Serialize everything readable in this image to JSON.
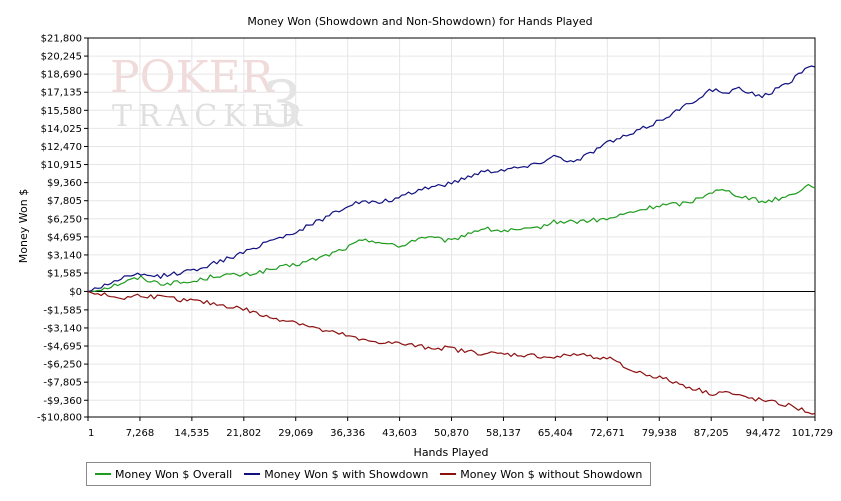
{
  "chart_data": {
    "type": "line",
    "title": "Money Won (Showdown and Non-Showdown) for Hands Played",
    "xlabel": "Hands Played",
    "ylabel": "Money Won $",
    "xlim": [
      1,
      101729
    ],
    "ylim": [
      -10800,
      21800
    ],
    "x_ticks": [
      1,
      7268,
      14535,
      21802,
      29069,
      36336,
      43603,
      50870,
      58137,
      65404,
      72671,
      79938,
      87205,
      94472,
      101729
    ],
    "x_tick_labels": [
      "1",
      "7,268",
      "14,535",
      "21,802",
      "29,069",
      "36,336",
      "43,603",
      "50,870",
      "58,137",
      "65,404",
      "72,671",
      "79,938",
      "87,205",
      "94,472",
      "101,729"
    ],
    "y_ticks": [
      21800,
      20245,
      18690,
      17135,
      15580,
      14025,
      12470,
      10915,
      9360,
      7805,
      6250,
      4695,
      3140,
      1585,
      0,
      -1585,
      -3140,
      -4695,
      -6250,
      -7805,
      -9360,
      -10800
    ],
    "y_tick_labels": [
      "$21,800",
      "$20,245",
      "$18,690",
      "$17,135",
      "$15,580",
      "$14,025",
      "$12,470",
      "$10,915",
      "$9,360",
      "$7,805",
      "$6,250",
      "$4,695",
      "$3,140",
      "$1,585",
      "$0",
      "-$1,585",
      "-$3,140",
      "-$4,695",
      "-$6,250",
      "-$7,805",
      "-$9,360",
      "-$10,800"
    ],
    "grid": true,
    "legend_position": "bottom-left",
    "series": [
      {
        "name": "Money Won $ Overall",
        "color": "#1e9c1e",
        "x": [
          1,
          3000,
          5000,
          7268,
          10000,
          14535,
          18000,
          21802,
          25000,
          29069,
          33000,
          36336,
          38000,
          40000,
          43603,
          45000,
          47000,
          50870,
          52000,
          55000,
          58137,
          62000,
          65404,
          68000,
          72671,
          76000,
          79938,
          84000,
          87205,
          89000,
          91000,
          94472,
          98000,
          101000,
          101729
        ],
        "y": [
          0,
          400,
          800,
          1200,
          700,
          800,
          1400,
          1400,
          1800,
          2300,
          3000,
          3800,
          4300,
          4400,
          3800,
          4300,
          4700,
          4300,
          4700,
          5400,
          5200,
          5300,
          6000,
          6000,
          6200,
          6800,
          7400,
          7600,
          8600,
          8700,
          8300,
          7700,
          8200,
          9200,
          8900
        ]
      },
      {
        "name": "Money Won $ with Showdown",
        "color": "#101080",
        "x": [
          1,
          3000,
          5000,
          7268,
          10000,
          14535,
          18000,
          21802,
          25000,
          29069,
          33000,
          36336,
          38000,
          40000,
          43603,
          45000,
          47000,
          50870,
          52000,
          55000,
          58137,
          62000,
          65404,
          68000,
          72671,
          76000,
          79938,
          84000,
          87205,
          89000,
          91000,
          94472,
          98000,
          101000,
          101729
        ],
        "y": [
          0,
          700,
          1200,
          1400,
          1300,
          1800,
          2500,
          3300,
          4300,
          5100,
          6300,
          7400,
          7700,
          7600,
          8000,
          8400,
          8900,
          9300,
          9600,
          10300,
          10500,
          10800,
          11700,
          11100,
          12800,
          13500,
          14700,
          16100,
          17400,
          17000,
          17400,
          16800,
          17900,
          19600,
          19300
        ]
      },
      {
        "name": "Money Won $ without Showdown",
        "color": "#8c1010",
        "x": [
          1,
          3000,
          5000,
          7268,
          10000,
          14535,
          18000,
          21802,
          25000,
          29069,
          33000,
          36336,
          38000,
          40000,
          43603,
          45000,
          47000,
          50870,
          52000,
          55000,
          58137,
          62000,
          65404,
          68000,
          72671,
          76000,
          79938,
          84000,
          87205,
          89000,
          91000,
          94472,
          98000,
          101000,
          101729
        ],
        "y": [
          0,
          -400,
          -600,
          -300,
          -500,
          -800,
          -1100,
          -1500,
          -2200,
          -2600,
          -3400,
          -3800,
          -4200,
          -4300,
          -4500,
          -4600,
          -4800,
          -4900,
          -5100,
          -5300,
          -5400,
          -5500,
          -5700,
          -5400,
          -5700,
          -6800,
          -7400,
          -8200,
          -8800,
          -8600,
          -9000,
          -9400,
          -9800,
          -10400,
          -10500
        ]
      }
    ]
  }
}
